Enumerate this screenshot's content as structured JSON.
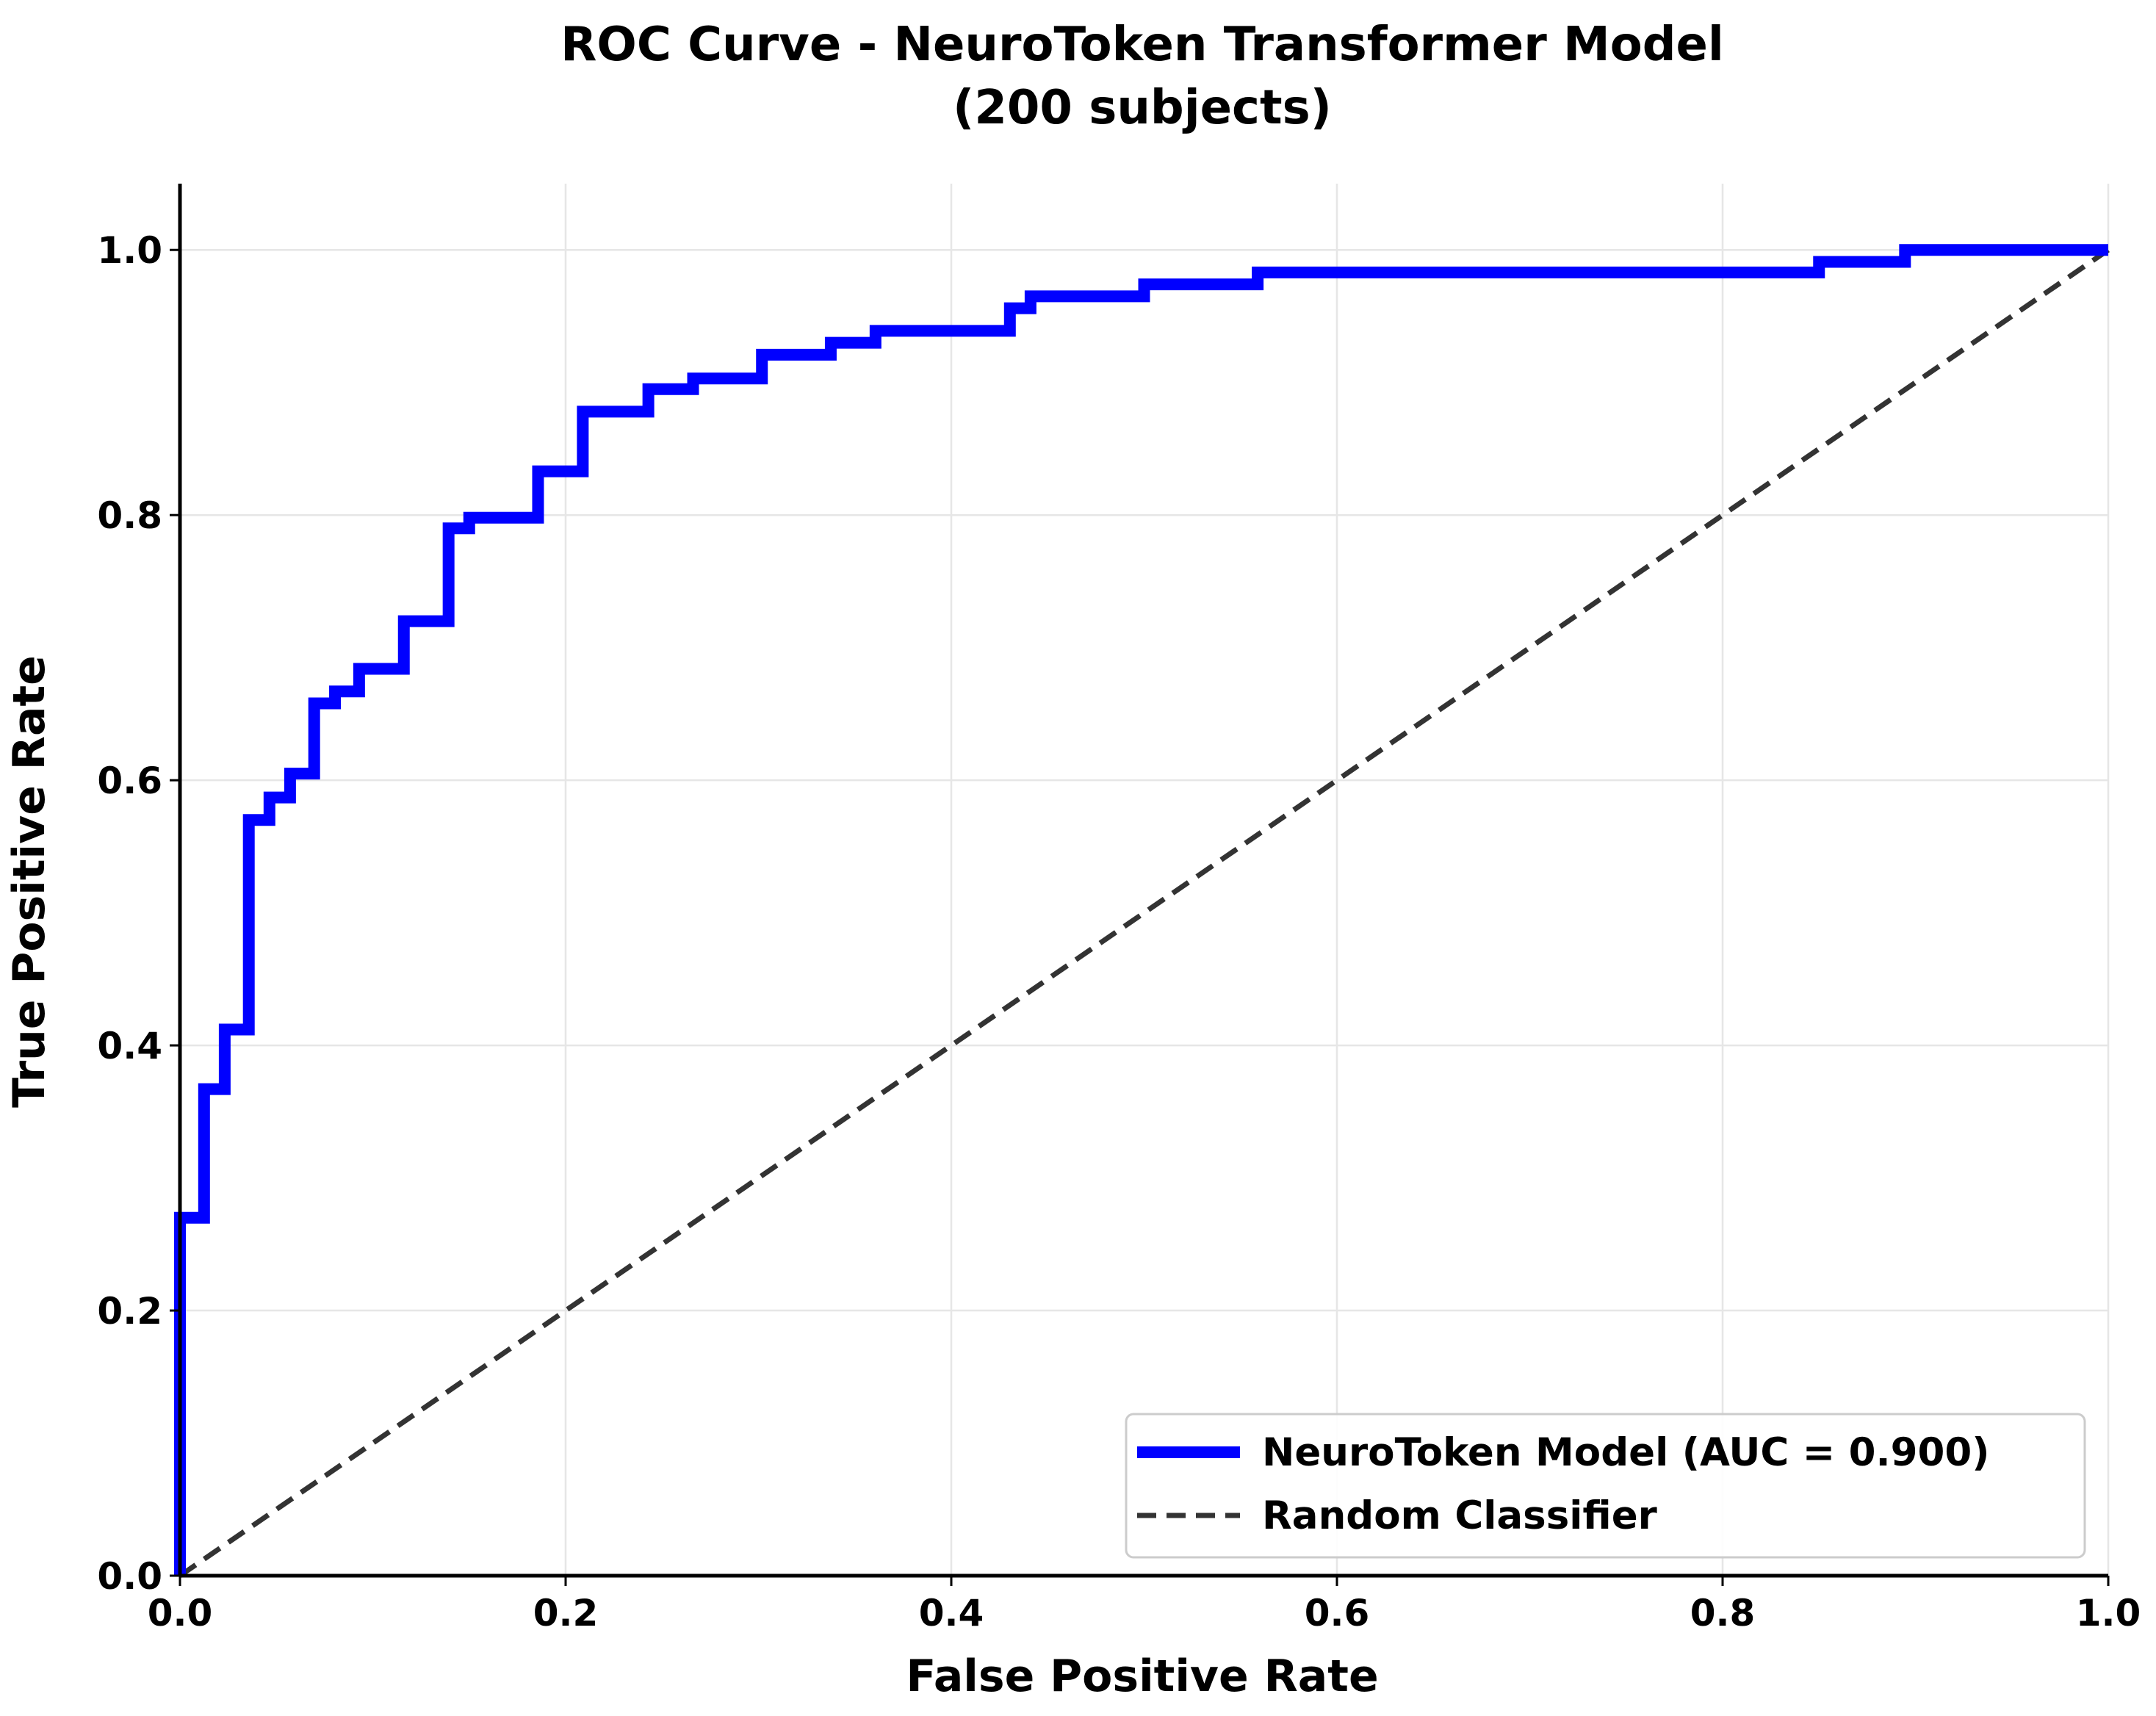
{
  "chart_data": {
    "type": "line",
    "title": "ROC Curve - NeuroToken Transformer Model",
    "subtitle": "(200 subjects)",
    "xlabel": "False Positive Rate",
    "ylabel": "True Positive Rate",
    "xlim": [
      0,
      1
    ],
    "ylim": [
      0,
      1.05
    ],
    "xticks": [
      "0.0",
      "0.2",
      "0.4",
      "0.6",
      "0.8",
      "1.0"
    ],
    "yticks": [
      "0.0",
      "0.2",
      "0.4",
      "0.6",
      "0.8",
      "1.0"
    ],
    "grid": true,
    "legend_position": "lower-right",
    "series": [
      {
        "name": "NeuroToken Model (AUC = 0.900)",
        "style": "solid",
        "color": "#0000ff",
        "x": [
          0.0,
          0.0,
          0.0125,
          0.0125,
          0.0232,
          0.0232,
          0.0357,
          0.0357,
          0.0464,
          0.0464,
          0.0571,
          0.0571,
          0.0696,
          0.0696,
          0.0804,
          0.0804,
          0.0929,
          0.0929,
          0.1161,
          0.1161,
          0.1393,
          0.1393,
          0.15,
          0.15,
          0.1857,
          0.1857,
          0.2089,
          0.2089,
          0.2429,
          0.2429,
          0.2661,
          0.2661,
          0.3018,
          0.3018,
          0.3375,
          0.3375,
          0.3607,
          0.3607,
          0.4304,
          0.4304,
          0.4411,
          0.4411,
          0.5,
          0.5,
          0.5589,
          0.5589,
          0.85,
          0.85,
          0.8946,
          0.8946,
          1.0
        ],
        "y": [
          0.0,
          0.27,
          0.27,
          0.367,
          0.367,
          0.412,
          0.412,
          0.57,
          0.57,
          0.587,
          0.587,
          0.605,
          0.605,
          0.658,
          0.658,
          0.667,
          0.667,
          0.684,
          0.684,
          0.72,
          0.72,
          0.79,
          0.79,
          0.798,
          0.798,
          0.833,
          0.833,
          0.878,
          0.878,
          0.895,
          0.895,
          0.903,
          0.903,
          0.921,
          0.921,
          0.93,
          0.93,
          0.939,
          0.939,
          0.956,
          0.956,
          0.965,
          0.965,
          0.974,
          0.974,
          0.983,
          0.983,
          0.991,
          0.991,
          1.0,
          1.0
        ]
      },
      {
        "name": "Random Classifier",
        "style": "dashed",
        "color": "#333333",
        "x": [
          0,
          1
        ],
        "y": [
          0,
          1
        ]
      }
    ]
  }
}
